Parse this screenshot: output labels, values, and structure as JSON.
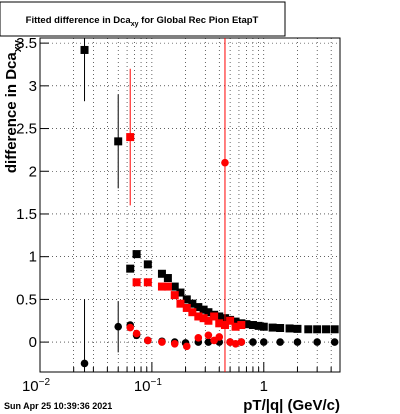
{
  "chart_data": {
    "type": "scatter",
    "title": [
      "Fitted difference in Dca",
      "xy",
      " for Global Rec Pion EtapT"
    ],
    "ylabel": [
      "difference in Dca",
      "xy"
    ],
    "xlabel": "pT/|q| (GeV/c)",
    "timestamp": "Sun Apr 25 10:39:36 2021",
    "xscale": "log",
    "grid": true,
    "xlim": [
      0.01,
      4.8
    ],
    "ylim": [
      -0.35,
      3.56
    ],
    "xticks": [
      {
        "value": 0.01,
        "label": "10",
        "exponent": "−2"
      },
      {
        "value": 0.1,
        "label": "10",
        "exponent": "−1"
      },
      1
    ],
    "xminorticks": [
      0.02,
      0.03,
      0.04,
      0.05,
      0.06,
      0.07,
      0.08,
      0.09,
      0.2,
      0.3,
      0.4,
      0.5,
      0.6,
      0.7,
      0.8,
      0.9,
      2,
      3,
      4
    ],
    "yticks": [
      0,
      0.5,
      1,
      1.5,
      2,
      2.5,
      3,
      3.5
    ],
    "series": [
      {
        "marker": "square",
        "color": "#000000",
        "x": [
          0.025,
          0.05,
          0.064,
          0.073,
          0.092,
          0.123,
          0.139,
          0.16,
          0.18,
          0.205,
          0.23,
          0.26,
          0.29,
          0.32,
          0.36,
          0.4,
          0.45,
          0.5,
          0.56,
          0.63,
          0.7,
          0.8,
          0.9,
          1.0,
          1.2,
          1.4,
          1.7,
          2.0,
          2.5,
          3.0,
          3.6,
          4.3
        ],
        "values": [
          3.42,
          2.35,
          0.86,
          1.03,
          0.91,
          0.8,
          0.75,
          0.65,
          0.58,
          0.5,
          0.45,
          0.41,
          0.38,
          0.35,
          0.32,
          0.3,
          0.28,
          0.26,
          0.24,
          0.22,
          0.21,
          0.2,
          0.19,
          0.18,
          0.17,
          0.165,
          0.16,
          0.155,
          0.15,
          0.15,
          0.15,
          0.15
        ],
        "errors": [
          0.6,
          0.55,
          null,
          null,
          null,
          null,
          null,
          null,
          null,
          null,
          null,
          null,
          null,
          null,
          null,
          null,
          null,
          null,
          null,
          null,
          null,
          null,
          null,
          null,
          null,
          null,
          null,
          null,
          null,
          null,
          null,
          null
        ]
      },
      {
        "marker": "circle",
        "color": "#000000",
        "x": [
          0.025,
          0.05,
          0.064,
          0.073,
          0.092,
          0.123,
          0.16,
          0.2,
          0.26,
          0.32,
          0.4,
          0.5,
          0.63,
          0.8,
          1.0,
          1.4,
          2.0,
          3.0,
          4.3
        ],
        "values": [
          -0.25,
          0.18,
          0.2,
          0.08,
          0.02,
          0.01,
          0.0,
          -0.01,
          0.0,
          0.0,
          0.0,
          0.0,
          0.0,
          0.0,
          0.0,
          0.0,
          0.0,
          0.0,
          0.0
        ],
        "errors": [
          0.75,
          0.3,
          null,
          null,
          null,
          null,
          null,
          null,
          null,
          null,
          null,
          null,
          null,
          null,
          null,
          null,
          null,
          null,
          null
        ]
      },
      {
        "marker": "square",
        "color": "#ff0000",
        "x": [
          0.064,
          0.073,
          0.092,
          0.123,
          0.139,
          0.16,
          0.18,
          0.205,
          0.23,
          0.26,
          0.29,
          0.32,
          0.36,
          0.4,
          0.45,
          0.5,
          0.56,
          0.63
        ],
        "values": [
          2.4,
          0.7,
          0.7,
          0.65,
          0.65,
          0.55,
          0.45,
          0.4,
          0.35,
          0.3,
          0.28,
          0.25,
          0.3,
          0.22,
          0.2,
          0.25,
          0.18,
          0.2
        ],
        "errors": [
          0.8,
          null,
          null,
          null,
          null,
          null,
          null,
          null,
          null,
          null,
          null,
          null,
          null,
          null,
          null,
          null,
          null,
          null
        ]
      },
      {
        "marker": "circle",
        "color": "#ff0000",
        "x": [
          0.064,
          0.073,
          0.092,
          0.123,
          0.16,
          0.205,
          0.26,
          0.32,
          0.36,
          0.4,
          0.45,
          0.5,
          0.56,
          0.63
        ],
        "values": [
          0.17,
          0.1,
          0.02,
          0.0,
          -0.02,
          -0.05,
          0.05,
          0.08,
          0.02,
          0.06,
          2.1,
          0.0,
          -0.02,
          0.0
        ],
        "errors": [
          null,
          null,
          null,
          null,
          null,
          null,
          null,
          null,
          null,
          null,
          2.5,
          null,
          null,
          null
        ]
      }
    ]
  }
}
